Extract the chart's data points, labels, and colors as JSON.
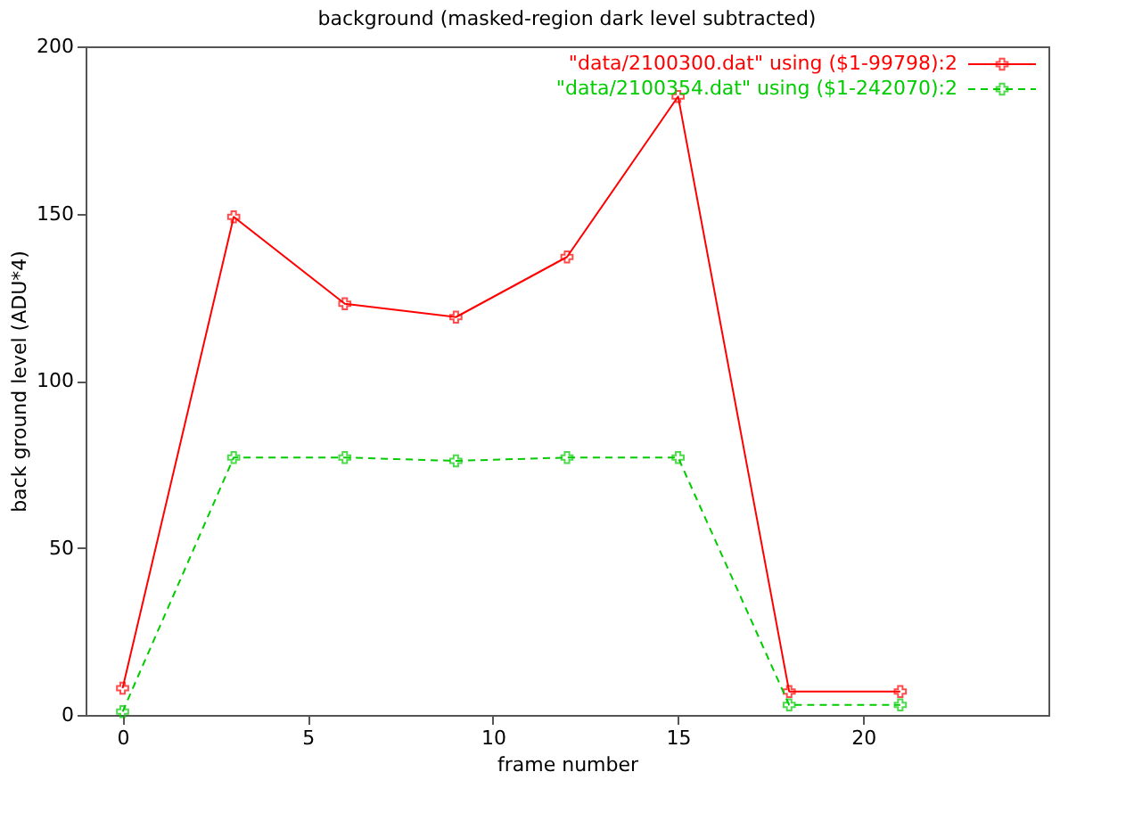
{
  "chart_data": {
    "type": "line",
    "title": "background (masked-region dark level subtracted)",
    "xlabel": "frame number",
    "ylabel": "back ground level (ADU*4)",
    "x": [
      0,
      3,
      6,
      9,
      12,
      15,
      18,
      21
    ],
    "series": [
      {
        "name": "\"data/2100300.dat\" using ($1-99798):2",
        "color": "#ff0000",
        "line_style": "solid",
        "marker": "cross",
        "values": [
          8,
          149,
          123,
          119,
          137,
          185,
          7,
          7
        ]
      },
      {
        "name": "\"data/2100354.dat\" using ($1-242070):2",
        "color": "#00cc00",
        "line_style": "dashed",
        "marker": "cross",
        "values": [
          1,
          77,
          77,
          76,
          77,
          77,
          3,
          3
        ]
      }
    ],
    "xlim": [
      -1,
      25
    ],
    "xticks": [
      0,
      5,
      10,
      15,
      20
    ],
    "ylim": [
      0,
      200
    ],
    "yticks": [
      0,
      50,
      100,
      150,
      200
    ],
    "grid": false,
    "legend": "top right"
  }
}
